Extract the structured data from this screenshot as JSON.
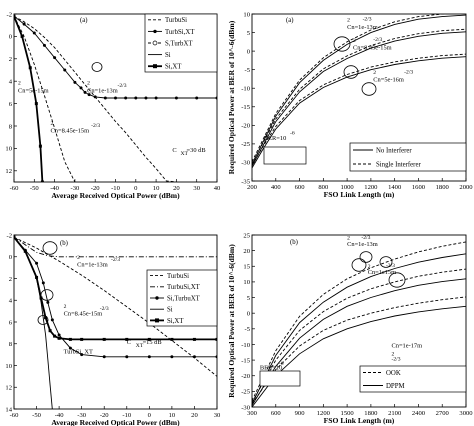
{
  "chart_data": [
    {
      "type": "line",
      "panel_label": "(a)",
      "xlabel": "Average Received Optical Power (dBm)",
      "ylabel": "",
      "xlim": [
        -60,
        40
      ],
      "ylim": [
        -2,
        13
      ],
      "y_inverted": true,
      "xticks": [
        "-60",
        "-50",
        "-40",
        "-30",
        "-20",
        "-10",
        "0",
        "10",
        "20",
        "30",
        "40"
      ],
      "yticks": [
        "-2",
        "0",
        "2",
        "4",
        "6",
        "8",
        "10",
        "12"
      ],
      "legend": [
        "TurbuSi",
        "TurbSi,XT",
        "S,TurbXT",
        "Si",
        "Si,XT"
      ],
      "legend_position": "top-right",
      "annotations": [
        {
          "text": "2",
          "x": -24,
          "y": 4.3
        },
        {
          "text": "Cn=1e-13m",
          "x": -24,
          "y": 5.0
        },
        {
          "text": "-2/3",
          "x": -9,
          "y": 4.5
        },
        {
          "text": "2",
          "x": -42,
          "y": 7.9
        },
        {
          "text": "Cn=8.45e-15m",
          "x": -42,
          "y": 8.6
        },
        {
          "text": "-2/3",
          "x": -22,
          "y": 8.1
        },
        {
          "text": "2",
          "x": -58,
          "y": 4.3
        },
        {
          "text": "Cn=5e-15m",
          "x": -58,
          "y": 5.0
        },
        {
          "text": "C",
          "x": 18,
          "y": 10.3
        },
        {
          "text": "XT",
          "x": 22,
          "y": 10.6
        },
        {
          "text": "=30 dB",
          "x": 25,
          "y": 10.3
        }
      ],
      "series": [
        {
          "name": "TurbuSi",
          "style": "dashed",
          "x": [
            -60,
            -55,
            -50,
            -45,
            -40,
            -35,
            -30,
            -25,
            -20,
            -15,
            -10,
            -5,
            0,
            5,
            10,
            15,
            20
          ],
          "y": [
            -1.8,
            -1.3,
            -0.7,
            0.1,
            1.0,
            2.1,
            3.2,
            4.3,
            5.4,
            6.5,
            7.6,
            8.6,
            9.7,
            10.8,
            11.8,
            12.9,
            13.0
          ]
        },
        {
          "name": "TurbSi,XT",
          "style": "solid-dot",
          "x": [
            -60,
            -55,
            -50,
            -45,
            -40,
            -35,
            -30,
            -27,
            -25,
            -23,
            -20,
            -15,
            -10,
            -5,
            0,
            5,
            10,
            20,
            30,
            40
          ],
          "y": [
            -1.8,
            -1.1,
            -0.3,
            0.8,
            1.9,
            3.0,
            4.1,
            4.6,
            5.0,
            5.2,
            5.4,
            5.5,
            5.5,
            5.5,
            5.5,
            5.5,
            5.5,
            5.5,
            5.5,
            5.5
          ]
        },
        {
          "name": "S,TurbXT",
          "style": "dashed",
          "x": [
            -60,
            -55,
            -50,
            -45,
            -40,
            -35,
            -30
          ],
          "y": [
            -1.8,
            0.0,
            2.5,
            5.3,
            8.2,
            11.2,
            13.0
          ]
        },
        {
          "name": "Si",
          "style": "solid",
          "x": [
            -60,
            -56,
            -52,
            -49,
            -47,
            -46
          ],
          "y": [
            -1.8,
            0.0,
            2.8,
            6.0,
            9.8,
            13.0
          ]
        },
        {
          "name": "Si,XT",
          "style": "solid-square",
          "x": [
            -60,
            -56,
            -52,
            -49,
            -47,
            -46
          ],
          "y": [
            -1.8,
            0.0,
            2.8,
            6.0,
            9.8,
            13.0
          ]
        }
      ]
    },
    {
      "type": "line",
      "panel_label": "(a)",
      "xlabel": "FSO Link Length (m)",
      "ylabel": "Required Optical Power at BER of 10^-6(dBm)",
      "xlim": [
        200,
        2000
      ],
      "ylim": [
        -35,
        10
      ],
      "xticks": [
        "200",
        "400",
        "600",
        "800",
        "1000",
        "1200",
        "1400",
        "1600",
        "1800",
        "2000"
      ],
      "yticks": [
        "-35",
        "-30",
        "-25",
        "-20",
        "-15",
        "-10",
        "-5",
        "0",
        "5",
        "10"
      ],
      "legend": [
        "No Interferer",
        "Single Interferer"
      ],
      "legend_position": "bottom-right",
      "annotations": [
        {
          "text": "2",
          "x": 1000,
          "y": 8.0
        },
        {
          "text": "Cn=1e-13m",
          "x": 1000,
          "y": 6.0
        },
        {
          "text": "-2/3",
          "x": 1130,
          "y": 8.2
        },
        {
          "text": "2",
          "x": 1050,
          "y": 2.5
        },
        {
          "text": "Cn=8.45e-15m",
          "x": 1050,
          "y": 0.5
        },
        {
          "text": "-2/3",
          "x": 1220,
          "y": 2.7
        },
        {
          "text": "2",
          "x": 1220,
          "y": -6.2
        },
        {
          "text": "Cn=5e-16m",
          "x": 1220,
          "y": -8.2
        },
        {
          "text": "-2/3",
          "x": 1480,
          "y": -6.0
        },
        {
          "text": "BER=10",
          "x": 300,
          "y": -24
        },
        {
          "text": "-6",
          "x": 520,
          "y": -22.5
        }
      ],
      "series": [
        {
          "name": "No Interferer",
          "variant": "Cn=1e-13",
          "style": "solid",
          "x": [
            200,
            300,
            400,
            600,
            800,
            1000,
            1200,
            1400,
            1600,
            1800,
            2000
          ],
          "y": [
            -30.5,
            -24,
            -17.5,
            -8.5,
            -2.5,
            1.8,
            5.0,
            7.2,
            8.6,
            9.3,
            9.7
          ]
        },
        {
          "name": "Single Interferer",
          "variant": "Cn=1e-13",
          "style": "dashed",
          "x": [
            200,
            300,
            400,
            600,
            800,
            1000,
            1200,
            1400,
            1600,
            1800,
            2000
          ],
          "y": [
            -29.8,
            -23.3,
            -16.8,
            -7.8,
            -1.8,
            2.5,
            5.7,
            7.9,
            9.3,
            10.0,
            10.4
          ]
        },
        {
          "name": "No Interferer",
          "variant": "Cn=8.45e-15",
          "style": "solid",
          "x": [
            200,
            300,
            400,
            600,
            800,
            1000,
            1200,
            1400,
            1600,
            1800,
            2000
          ],
          "y": [
            -31,
            -25,
            -19,
            -11,
            -5.5,
            -2.0,
            0.8,
            2.7,
            4.0,
            4.8,
            5.2
          ]
        },
        {
          "name": "Single Interferer",
          "variant": "Cn=8.45e-15",
          "style": "dashed",
          "x": [
            200,
            300,
            400,
            600,
            800,
            1000,
            1200,
            1400,
            1600,
            1800,
            2000
          ],
          "y": [
            -30.3,
            -24.3,
            -18.3,
            -10.3,
            -4.8,
            -1.3,
            1.5,
            3.4,
            4.7,
            5.5,
            5.9
          ]
        },
        {
          "name": "No Interferer",
          "variant": "Cn=5e-16",
          "style": "solid",
          "x": [
            200,
            300,
            400,
            600,
            800,
            1000,
            1200,
            1400,
            1600,
            1800,
            2000
          ],
          "y": [
            -31.5,
            -26,
            -21,
            -14,
            -9.8,
            -7.0,
            -5.0,
            -3.6,
            -2.6,
            -1.9,
            -1.5
          ]
        },
        {
          "name": "Single Interferer",
          "variant": "Cn=5e-16",
          "style": "dashed",
          "x": [
            200,
            300,
            400,
            600,
            800,
            1000,
            1200,
            1400,
            1600,
            1800,
            2000
          ],
          "y": [
            -30.8,
            -25.3,
            -20.3,
            -13.3,
            -9.1,
            -6.3,
            -4.3,
            -2.9,
            -1.9,
            -1.2,
            -0.8
          ]
        }
      ]
    },
    {
      "type": "line",
      "panel_label": "(b)",
      "xlabel": "Average Received Optical Power (dBm)",
      "ylabel": "",
      "xlim": [
        -60,
        30
      ],
      "ylim": [
        -2,
        14
      ],
      "y_inverted": true,
      "xticks": [
        "-60",
        "-50",
        "-40",
        "-30",
        "-20",
        "-10",
        "0",
        "10",
        "20",
        "30"
      ],
      "yticks": [
        "-2",
        "0",
        "2",
        "4",
        "6",
        "8",
        "10",
        "12",
        "14"
      ],
      "legend": [
        "TurbuSi",
        "TurbuSi,XT",
        "Si,TurbuXT",
        "Si",
        "Si,XT"
      ],
      "legend_position": "right",
      "annotations": [
        {
          "text": "2",
          "x": -32,
          "y": 0.2
        },
        {
          "text": "Cn=1e-13m",
          "x": -32,
          "y": 0.9
        },
        {
          "text": "-2/3",
          "x": -17,
          "y": 0.4
        },
        {
          "text": "2",
          "x": -38,
          "y": 4.7
        },
        {
          "text": "Cn=8.45e-15m",
          "x": -38,
          "y": 5.4
        },
        {
          "text": "-2/3",
          "x": -22,
          "y": 4.9
        },
        {
          "text": "TurbSi, XT",
          "x": -38,
          "y": 8.9
        },
        {
          "text": "C",
          "x": -10,
          "y": 8.0
        },
        {
          "text": "XT",
          "x": -6,
          "y": 8.3
        },
        {
          "text": "=15 dB",
          "x": -3,
          "y": 8.0
        }
      ],
      "series": [
        {
          "name": "TurbuSi",
          "style": "dashed",
          "x": [
            -60,
            -50,
            -40,
            -30,
            -20,
            -10,
            0,
            10,
            20,
            30
          ],
          "y": [
            -1.8,
            -0.8,
            0.4,
            1.7,
            3.1,
            4.6,
            6.1,
            7.7,
            9.3,
            11.0
          ]
        },
        {
          "name": "TurbuSi,XT",
          "style": "dash-dot",
          "x": [
            -60,
            -50,
            -45,
            -40,
            -30,
            -20,
            -10,
            0,
            10,
            20,
            30
          ],
          "y": [
            -1.8,
            -0.4,
            -0.1,
            0.0,
            0.0,
            0.0,
            0.0,
            0.0,
            0.0,
            0.0,
            0.0
          ]
        },
        {
          "name": "Si,TurbuXT",
          "style": "solid-dot",
          "x": [
            -60,
            -55,
            -50,
            -47,
            -45,
            -43,
            -40,
            -35,
            -30,
            -20,
            -10,
            0,
            10,
            20,
            30
          ],
          "y": [
            -1.8,
            -0.6,
            0.6,
            2.4,
            4.2,
            5.8,
            7.2,
            8.4,
            9.0,
            9.2,
            9.2,
            9.2,
            9.2,
            9.2,
            9.2
          ]
        },
        {
          "name": "Si",
          "style": "solid",
          "x": [
            -60,
            -55,
            -50,
            -48,
            -46,
            -45,
            -44,
            -43
          ],
          "y": [
            -1.8,
            -0.5,
            2.0,
            4.2,
            7.2,
            9.4,
            11.8,
            14.0
          ]
        },
        {
          "name": "Si,XT",
          "style": "solid-square",
          "x": [
            -60,
            -55,
            -50,
            -48,
            -46,
            -44,
            -42,
            -40,
            -35,
            -30,
            -20,
            -10,
            0,
            10,
            20,
            30
          ],
          "y": [
            -1.8,
            -0.5,
            1.9,
            3.8,
            5.6,
            6.8,
            7.3,
            7.5,
            7.6,
            7.6,
            7.6,
            7.6,
            7.6,
            7.6,
            7.6,
            7.6
          ]
        }
      ]
    },
    {
      "type": "line",
      "panel_label": "(b)",
      "xlabel": "FSO Link Length (m)",
      "ylabel": "Required Optical Power at BER of 10^-6(dBm)",
      "xlim": [
        300,
        3000
      ],
      "ylim": [
        -30,
        25
      ],
      "xticks": [
        "300",
        "600",
        "900",
        "1200",
        "1500",
        "1800",
        "2100",
        "2400",
        "2700",
        "3000"
      ],
      "yticks": [
        "-30",
        "-25",
        "-20",
        "-15",
        "-10",
        "-5",
        "0",
        "5",
        "10",
        "15",
        "20",
        "25"
      ],
      "legend": [
        "OOK",
        "DPPM"
      ],
      "legend_position": "bottom-right",
      "annotations": [
        {
          "text": "2",
          "x": 1500,
          "y": 23.5
        },
        {
          "text": "Cn=1e-13m",
          "x": 1500,
          "y": 21.5
        },
        {
          "text": "-2/3",
          "x": 1680,
          "y": 23.7
        },
        {
          "text": "2",
          "x": 1760,
          "y": 14.5
        },
        {
          "text": "Cn=1e15m",
          "x": 1760,
          "y": 12.5
        },
        {
          "text": "-2/3",
          "x": 1990,
          "y": 14.7
        },
        {
          "text": "2",
          "x": 2060,
          "y": -13.5
        },
        {
          "text": "Cn=1e-17m",
          "x": 2060,
          "y": -11.0
        },
        {
          "text": "-2/3",
          "x": 2060,
          "y": -15.2
        },
        {
          "text": "BER=10",
          "x": 400,
          "y": -18
        },
        {
          "text": "-6",
          "x": 640,
          "y": -16.5
        }
      ],
      "series": [
        {
          "name": "OOK",
          "variant": "Cn=1e-13",
          "style": "dashed",
          "x": [
            300,
            600,
            900,
            1200,
            1500,
            1800,
            2100,
            2400,
            2700,
            3000
          ],
          "y": [
            -28,
            -12,
            -1,
            6,
            11,
            14.5,
            17.3,
            19.6,
            21.4,
            22.8
          ]
        },
        {
          "name": "DPPM",
          "variant": "Cn=1e-13",
          "style": "solid",
          "x": [
            300,
            600,
            900,
            1200,
            1500,
            1800,
            2100,
            2400,
            2700,
            3000
          ],
          "y": [
            -29,
            -13.5,
            -3,
            3.5,
            8.3,
            11.7,
            14.3,
            16.3,
            17.8,
            19.0
          ]
        },
        {
          "name": "OOK",
          "variant": "Cn=1e15",
          "style": "dashed",
          "x": [
            300,
            600,
            900,
            1200,
            1500,
            1800,
            2100,
            2400,
            2700,
            3000
          ],
          "y": [
            -28.5,
            -15,
            -5.5,
            0.5,
            4.8,
            7.8,
            10.0,
            11.8,
            13.1,
            14.1
          ]
        },
        {
          "name": "DPPM",
          "variant": "Cn=1e15",
          "style": "solid",
          "x": [
            300,
            600,
            900,
            1200,
            1500,
            1800,
            2100,
            2400,
            2700,
            3000
          ],
          "y": [
            -29.5,
            -17,
            -8,
            -2,
            2.2,
            5.0,
            7.2,
            8.9,
            10.1,
            11.0
          ]
        },
        {
          "name": "OOK",
          "variant": "Cn=1e-17",
          "style": "dashed",
          "x": [
            300,
            600,
            900,
            1200,
            1500,
            1800,
            2100,
            2400,
            2700,
            3000
          ],
          "y": [
            -29,
            -18,
            -10.5,
            -5.5,
            -2.2,
            0.0,
            1.8,
            3.2,
            4.3,
            5.2
          ]
        },
        {
          "name": "DPPM",
          "variant": "Cn=1e-17",
          "style": "solid",
          "x": [
            300,
            600,
            900,
            1200,
            1500,
            1800,
            2100,
            2400,
            2700,
            3000
          ],
          "y": [
            -30,
            -20,
            -13,
            -8.2,
            -5.0,
            -2.7,
            -0.9,
            0.4,
            1.4,
            2.2
          ]
        }
      ]
    }
  ]
}
